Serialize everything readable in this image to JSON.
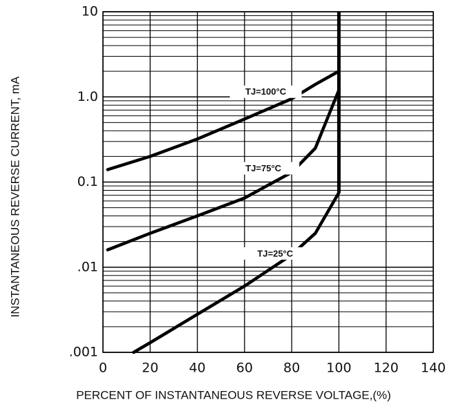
{
  "chart_data": {
    "type": "line",
    "title": "",
    "xlabel": "PERCENT OF INSTANTANEOUS REVERSE VOLTAGE,(%)",
    "ylabel": "INSTANTANEOUS REVERSE CURRENT, mA",
    "xlim": [
      0,
      140
    ],
    "ylim": [
      0.001,
      10
    ],
    "y_scale": "log",
    "grid": true,
    "x_ticks": [
      "0",
      "20",
      "40",
      "60",
      "80",
      "100",
      "120",
      "140"
    ],
    "x_tick_values": [
      0,
      20,
      40,
      60,
      80,
      100,
      120,
      140
    ],
    "y_ticks": [
      ".001",
      ".01",
      "0.1",
      "1.0",
      "10"
    ],
    "y_tick_values": [
      0.001,
      0.01,
      0.1,
      1.0,
      10
    ],
    "series": [
      {
        "name": "TJ=100°C",
        "x": [
          2,
          20,
          40,
          60,
          80,
          90,
          100
        ],
        "y": [
          0.14,
          0.2,
          0.32,
          0.55,
          0.95,
          1.4,
          2.0
        ]
      },
      {
        "name": "TJ=75°C",
        "x": [
          2,
          20,
          40,
          60,
          80,
          90,
          95,
          100
        ],
        "y": [
          0.016,
          0.025,
          0.04,
          0.065,
          0.13,
          0.25,
          0.55,
          1.2
        ]
      },
      {
        "name": "TJ=25°C",
        "x": [
          13,
          20,
          40,
          60,
          80,
          90,
          100
        ],
        "y": [
          0.001,
          0.0013,
          0.0028,
          0.006,
          0.014,
          0.025,
          0.075
        ]
      }
    ],
    "vertical_limit_line": {
      "x": 100,
      "y_from": 0.075,
      "y_to": 10
    }
  },
  "colors": {
    "line": "#000000",
    "grid": "#000000",
    "background": "#ffffff"
  }
}
